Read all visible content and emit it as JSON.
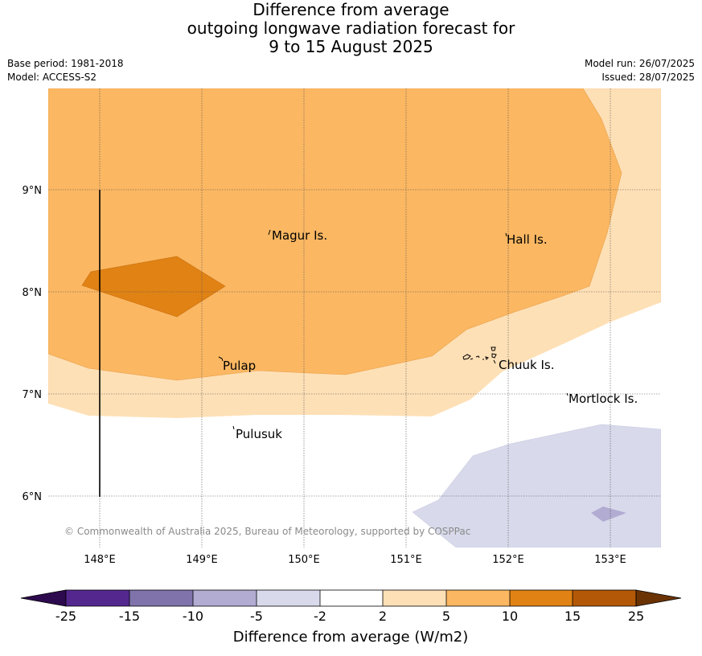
{
  "header": {
    "title_line1": "Difference from average",
    "title_line2": "outgoing longwave radiation forecast for",
    "title_line3": "9 to 15 August 2025",
    "base_period": "Base period: 1981-2018",
    "model": "Model: ACCESS-S2",
    "model_run": "Model run: 26/07/2025",
    "issued": "Issued: 28/07/2025"
  },
  "map": {
    "lat_labels": [
      "9°N",
      "8°N",
      "7°N",
      "6°N"
    ],
    "lon_labels": [
      "148°E",
      "149°E",
      "150°E",
      "151°E",
      "152°E",
      "153°E"
    ],
    "places": {
      "magur": "Magur Is.",
      "hall": "Hall Is.",
      "pulap": "Pulap",
      "chuuk": "Chuuk Is.",
      "mortlock": "Mortlock Is.",
      "pulusuk": "Pulusuk"
    },
    "copyright": "© Commonwealth of Australia 2025, Bureau of Meteorology, supported by COSPPac"
  },
  "colorbar": {
    "ticks": [
      "-25",
      "-15",
      "-10",
      "-5",
      "-2",
      "2",
      "5",
      "10",
      "15",
      "25"
    ],
    "label": "Difference from average (W/m2)",
    "colors": [
      "#2d0a4e",
      "#54278f",
      "#8073ac",
      "#b2abd2",
      "#d8daeb",
      "#ffffff",
      "#fee0b6",
      "#fbb762",
      "#e08214",
      "#b35806",
      "#6b3303"
    ]
  }
}
